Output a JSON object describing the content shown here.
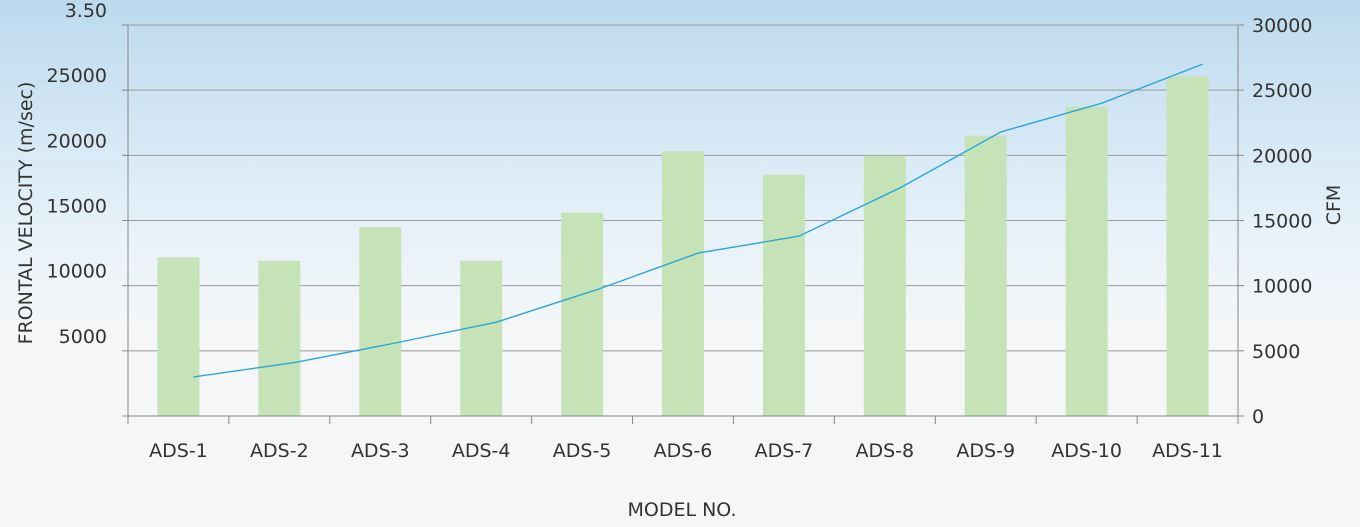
{
  "chart_data": {
    "type": "bar",
    "title": "",
    "xlabel": "MODEL NO.",
    "ylabel_left": "FRONTAL VELOCITY (m/sec)",
    "ylabel_right": "CFM",
    "categories": [
      "ADS-1",
      "ADS-2",
      "ADS-3",
      "ADS-4",
      "ADS-5",
      "ADS-6",
      "ADS-7",
      "ADS-8",
      "ADS-9",
      "ADS-10",
      "ADS-11"
    ],
    "left_ticks": [
      "",
      "5000",
      "10000",
      "15000",
      "20000",
      "25000",
      "3.50"
    ],
    "right_ticks": [
      "0",
      "5000",
      "10000",
      "15000",
      "20000",
      "25000",
      "30000"
    ],
    "left_ylim": [
      0,
      3.5
    ],
    "right_ylim": [
      0,
      30000
    ],
    "series": [
      {
        "type": "bar",
        "axis": "left",
        "color": "#c6e2b7",
        "values": [
          1.42,
          1.39,
          1.69,
          1.39,
          1.82,
          2.37,
          2.16,
          2.33,
          2.51,
          2.77,
          3.04
        ]
      },
      {
        "type": "line",
        "axis": "right",
        "color": "#2aa7d6",
        "values": [
          3000,
          4100,
          5600,
          7200,
          9700,
          12500,
          13800,
          17500,
          21800,
          24000,
          27000
        ]
      }
    ],
    "grid": true,
    "legend": "none"
  }
}
